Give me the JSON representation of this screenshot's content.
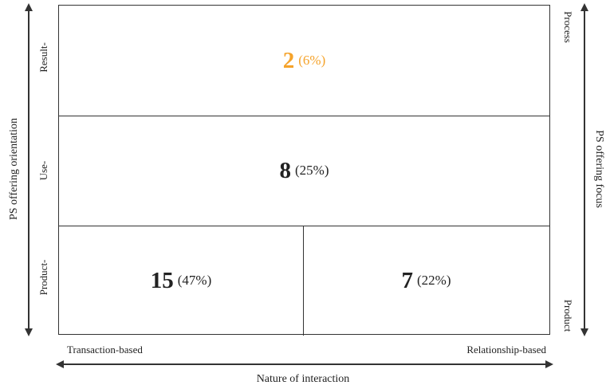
{
  "left_axis": {
    "title": "PS offering orientation"
  },
  "right_axis": {
    "title": "PS offering focus",
    "top_label": "Process",
    "bottom_label": "Product"
  },
  "bottom_axis": {
    "title": "Nature of interaction",
    "left_label": "Transaction-based",
    "right_label": "Relationship-based"
  },
  "rows": [
    {
      "label": "Result-"
    },
    {
      "label": "Use-"
    },
    {
      "label": "Product-"
    }
  ],
  "cells": {
    "result": {
      "count": "2",
      "percent": "(6%)"
    },
    "use": {
      "count": "8",
      "percent": "(25%)"
    },
    "product_transaction": {
      "count": "15",
      "percent": "(47%)"
    },
    "product_relationship": {
      "count": "7",
      "percent": "(22%)"
    }
  },
  "colors": {
    "highlight": "#f5a32b",
    "line": "#333333"
  }
}
